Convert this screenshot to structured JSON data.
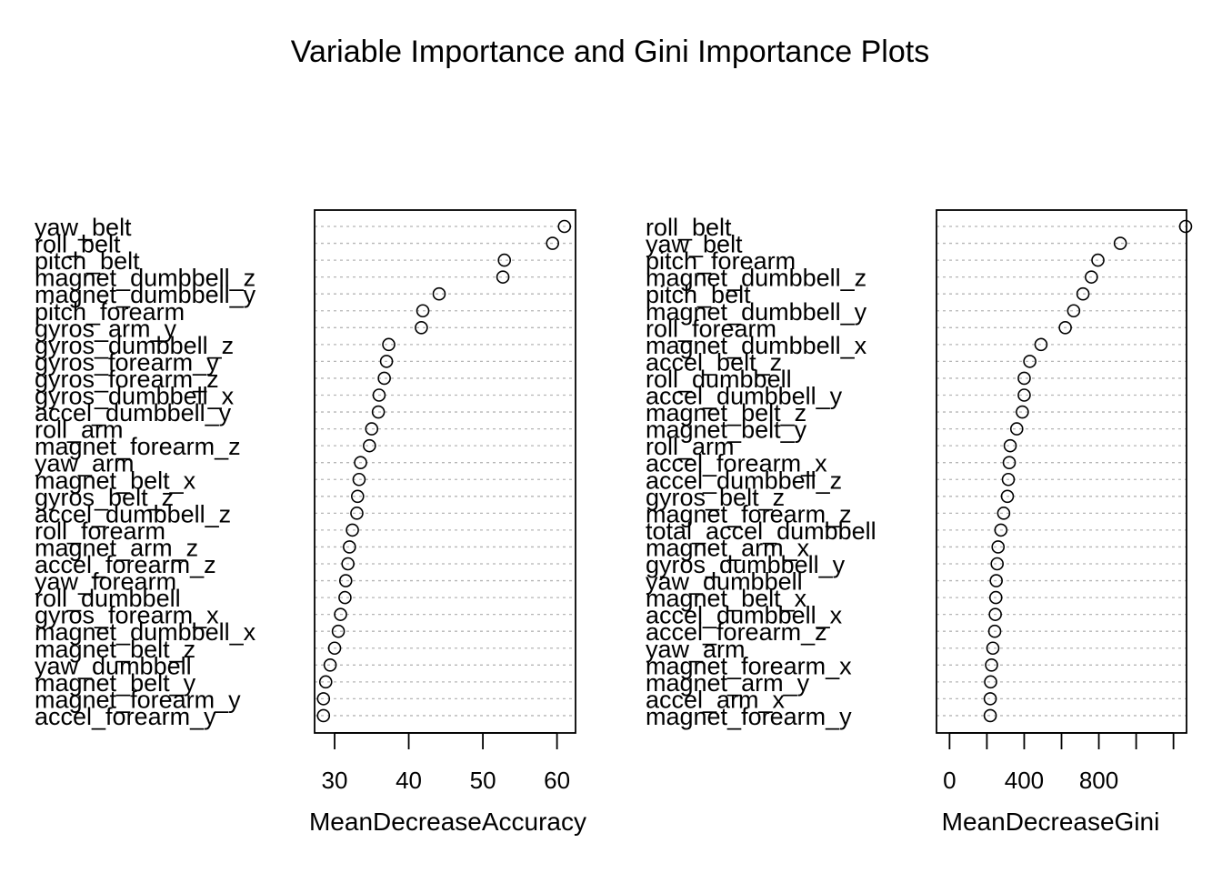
{
  "title": "Variable Importance and Gini Importance Plots",
  "chart_data": [
    {
      "type": "scatter",
      "subtype": "dotchart",
      "xlabel": "MeanDecreaseAccuracy",
      "xlim": [
        27.3,
        62.5
      ],
      "xticks": [
        30,
        40,
        50,
        60
      ],
      "grid": "dotted horizontal guide per variable",
      "categories": [
        "yaw_belt",
        "roll_belt",
        "pitch_belt",
        "magnet_dumbbell_z",
        "magnet_dumbbell_y",
        "pitch_forearm",
        "gyros_arm_y",
        "gyros_dumbbell_z",
        "gyros_forearm_y",
        "gyros_forearm_z",
        "gyros_dumbbell_x",
        "accel_dumbbell_y",
        "roll_arm",
        "magnet_forearm_z",
        "yaw_arm",
        "magnet_belt_x",
        "gyros_belt_z",
        "accel_dumbbell_z",
        "roll_forearm",
        "magnet_arm_z",
        "accel_forearm_z",
        "yaw_forearm",
        "roll_dumbbell",
        "gyros_forearm_x",
        "magnet_dumbbell_x",
        "magnet_belt_z",
        "yaw_dumbbell",
        "magnet_belt_y",
        "magnet_forearm_y",
        "accel_forearm_y"
      ],
      "values": [
        61.0,
        59.4,
        52.9,
        52.7,
        44.1,
        41.9,
        41.7,
        37.3,
        37.0,
        36.7,
        36.0,
        35.9,
        35.0,
        34.7,
        33.5,
        33.3,
        33.1,
        33.0,
        32.4,
        32.0,
        31.8,
        31.5,
        31.4,
        30.8,
        30.5,
        30.0,
        29.4,
        28.8,
        28.5,
        28.5
      ]
    },
    {
      "type": "scatter",
      "subtype": "dotchart",
      "xlabel": "MeanDecreaseGini",
      "xlim": [
        -70,
        1270
      ],
      "xticks": [
        0,
        200,
        400,
        600,
        800,
        1000,
        1200
      ],
      "xtick_labels": [
        "0",
        "",
        "400",
        "",
        "800",
        "",
        ""
      ],
      "grid": "dotted horizontal guide per variable",
      "categories": [
        "roll_belt",
        "yaw_belt",
        "pitch_forearm",
        "magnet_dumbbell_z",
        "pitch_belt",
        "magnet_dumbbell_y",
        "roll_forearm",
        "magnet_dumbbell_x",
        "accel_belt_z",
        "roll_dumbbell",
        "accel_dumbbell_y",
        "magnet_belt_z",
        "magnet_belt_y",
        "roll_arm",
        "accel_forearm_x",
        "accel_dumbbell_z",
        "gyros_belt_z",
        "magnet_forearm_z",
        "total_accel_dumbbell",
        "magnet_arm_x",
        "gyros_dumbbell_y",
        "yaw_dumbbell",
        "magnet_belt_x",
        "accel_dumbbell_x",
        "accel_forearm_z",
        "yaw_arm",
        "magnet_forearm_x",
        "magnet_arm_y",
        "accel_arm_x",
        "magnet_forearm_y"
      ],
      "values": [
        1265,
        915,
        795,
        760,
        715,
        665,
        620,
        490,
        430,
        400,
        400,
        390,
        360,
        325,
        320,
        315,
        310,
        290,
        275,
        260,
        255,
        250,
        248,
        245,
        242,
        232,
        225,
        220,
        218,
        218
      ]
    }
  ]
}
